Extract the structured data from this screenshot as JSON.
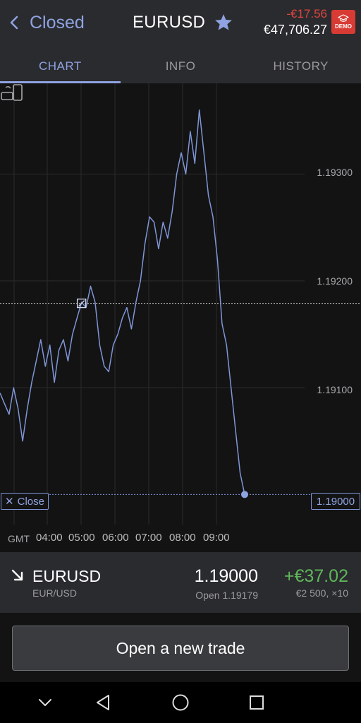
{
  "header": {
    "back_label": "Closed",
    "title": "EURUSD",
    "pnl": "-€17.56",
    "equity": "€47,706.27",
    "demo_badge": "DEMO"
  },
  "tabs": [
    {
      "label": "CHART",
      "active": true
    },
    {
      "label": "INFO",
      "active": false
    },
    {
      "label": "HISTORY",
      "active": false
    }
  ],
  "chart": {
    "close_label": "Close",
    "current_price": "1.19000",
    "timezone_label": "GMT",
    "y_tick_labels": [
      "1.19300",
      "1.19200",
      "1.19100"
    ],
    "x_tick_labels": [
      "04:00",
      "05:00",
      "06:00",
      "07:00",
      "08:00",
      "09:00"
    ]
  },
  "chart_data": {
    "type": "line",
    "series": [
      {
        "values": [
          1.19095,
          1.19085,
          1.19075,
          1.191,
          1.1908,
          1.1905,
          1.1908,
          1.19105,
          1.19125,
          1.19145,
          1.1912,
          1.1914,
          1.19105,
          1.19135,
          1.19145,
          1.19125,
          1.1915,
          1.19165,
          1.1918,
          1.19175,
          1.19195,
          1.1918,
          1.1914,
          1.1912,
          1.19115,
          1.1914,
          1.1915,
          1.19165,
          1.19175,
          1.19155,
          1.1918,
          1.192,
          1.19235,
          1.1926,
          1.19255,
          1.1923,
          1.19255,
          1.1924,
          1.19265,
          1.193,
          1.1932,
          1.193,
          1.1934,
          1.1931,
          1.1936,
          1.1932,
          1.1928,
          1.1926,
          1.1922,
          1.1916,
          1.1914,
          1.191,
          1.1906,
          1.1902,
          1.19
        ]
      }
    ],
    "open_price": 1.19179,
    "close_price": 1.19,
    "y_ticks": [
      1.193,
      1.192,
      1.191
    ],
    "x_ticks": [
      "04:00",
      "05:00",
      "06:00",
      "07:00",
      "08:00",
      "09:00"
    ],
    "ylim": [
      1.18985,
      1.19385
    ],
    "grid": true,
    "line_color": "#7f96d8"
  },
  "position": {
    "symbol": "EURUSD",
    "pair": "EUR/USD",
    "price": "1.19000",
    "open": "Open 1.19179",
    "profit": "+€37.02",
    "size": "€2 500, ×10"
  },
  "action": {
    "label": "Open a new trade"
  },
  "colors": {
    "accent": "#8fa3e2",
    "loss": "#e0453f",
    "profit": "#5fb65b",
    "demo": "#d83a34"
  },
  "icons": {
    "back": "chevron-left-icon",
    "favorite": "star-icon",
    "demo": "graduation-cap-icon",
    "direction": "arrow-down-right-icon",
    "device": "device-rotate-icon",
    "nav": [
      "chevron-down-icon",
      "back-triangle-icon",
      "home-circle-icon",
      "recents-square-icon"
    ]
  }
}
